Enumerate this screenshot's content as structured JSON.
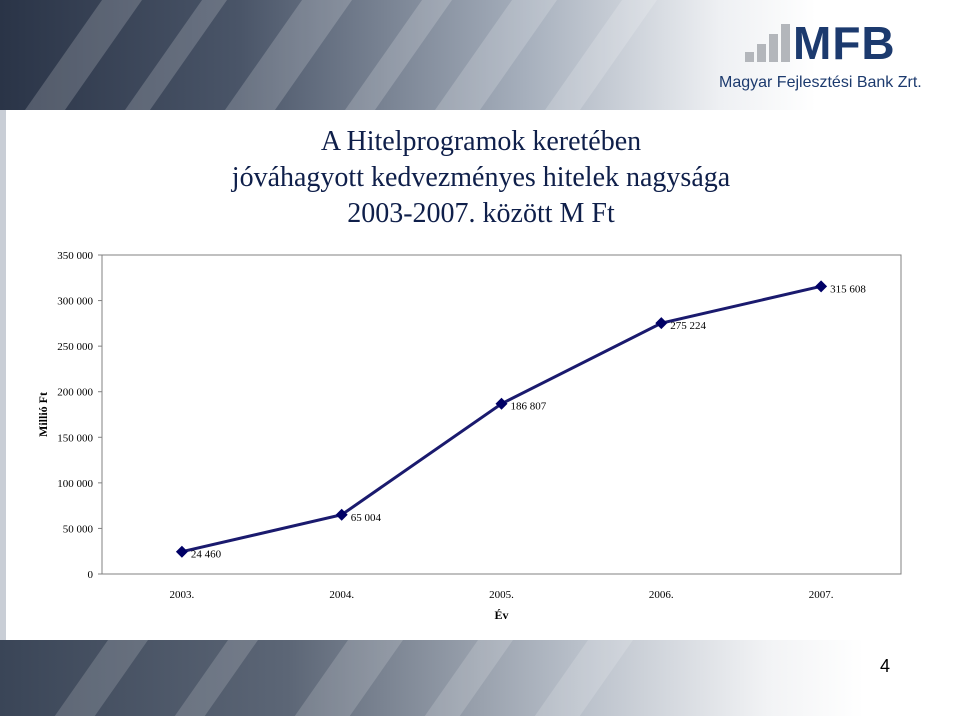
{
  "logo": {
    "text": "MFB",
    "subtitle": "Magyar Fejlesztési Bank Zrt."
  },
  "title": {
    "lines": [
      "A Hitelprogramok keretében",
      "jóváhagyott kedvezményes hitelek nagysága",
      "2003-2007.  között M Ft"
    ]
  },
  "page_number": "4",
  "colors": {
    "line": "#1a1a6e",
    "marker": "#000066",
    "title": "#0f1f4a",
    "logo": "#1c3a6e"
  },
  "chart_data": {
    "type": "line",
    "categories": [
      "2003.",
      "2004.",
      "2005.",
      "2006.",
      "2007."
    ],
    "series": [
      {
        "values": [
          24460,
          65004,
          186807,
          275224,
          315608
        ]
      }
    ],
    "data_labels": [
      "24 460",
      "65 004",
      "186 807",
      "275 224",
      "315 608"
    ],
    "y_ticks": [
      0,
      50000,
      100000,
      150000,
      200000,
      250000,
      300000,
      350000
    ],
    "y_tick_labels": [
      "0",
      "50 000",
      "100 000",
      "150 000",
      "200 000",
      "250 000",
      "300 000",
      "350 000"
    ],
    "ylim": [
      0,
      350000
    ],
    "xlabel": "Év",
    "ylabel": "Millió Ft",
    "grid": false,
    "legend": "none",
    "marker": "diamond"
  }
}
